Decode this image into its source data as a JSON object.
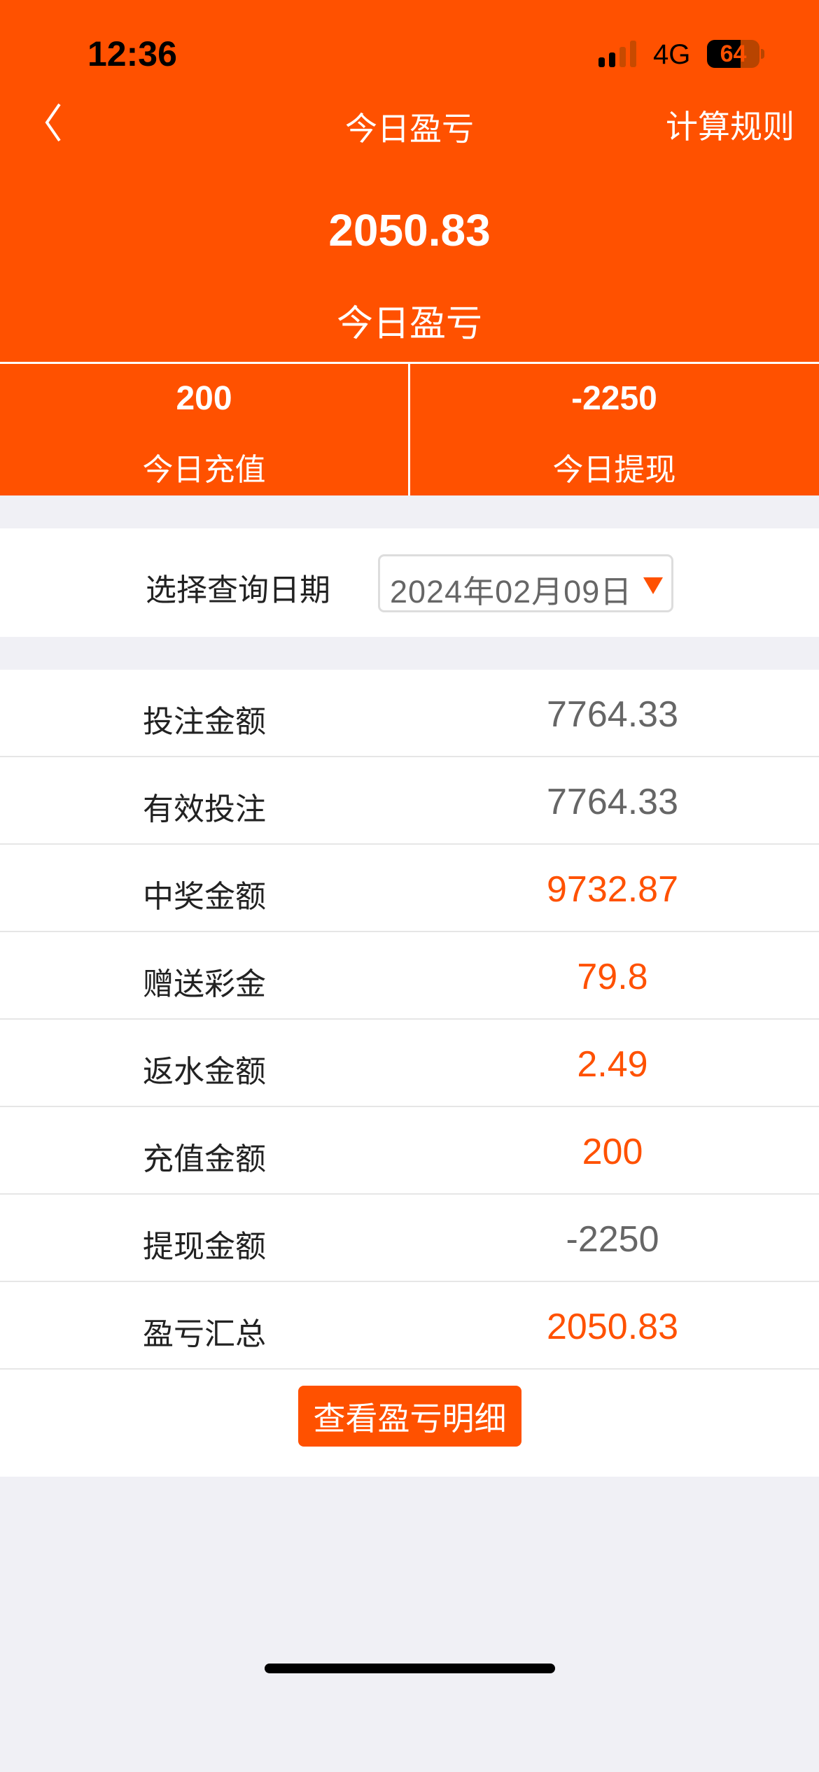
{
  "status_bar": {
    "time": "12:36",
    "network": "4G",
    "battery": "64",
    "battery_level": 0.64
  },
  "nav": {
    "back_icon": "chevron-left-icon",
    "title": "今日盈亏",
    "rules_label": "计算规则"
  },
  "summary": {
    "amount": "2050.83",
    "label": "今日盈亏",
    "recharge": {
      "value": "200",
      "label": "今日充值"
    },
    "withdraw": {
      "value": "-2250",
      "label": "今日提现"
    }
  },
  "date_filter": {
    "label": "选择查询日期",
    "value": "2024年02月09日"
  },
  "colors": {
    "accent": "#ff5100",
    "muted": "#666666"
  },
  "rows": [
    {
      "label": "投注金额",
      "value": "7764.33",
      "highlight": false
    },
    {
      "label": "有效投注",
      "value": "7764.33",
      "highlight": false
    },
    {
      "label": "中奖金额",
      "value": "9732.87",
      "highlight": true
    },
    {
      "label": "赠送彩金",
      "value": "79.8",
      "highlight": true
    },
    {
      "label": "返水金额",
      "value": "2.49",
      "highlight": true
    },
    {
      "label": "充值金额",
      "value": "200",
      "highlight": true
    },
    {
      "label": "提现金额",
      "value": "-2250",
      "highlight": false
    },
    {
      "label": "盈亏汇总",
      "value": "2050.83",
      "highlight": true
    }
  ],
  "detail_button": "查看盈亏明细"
}
